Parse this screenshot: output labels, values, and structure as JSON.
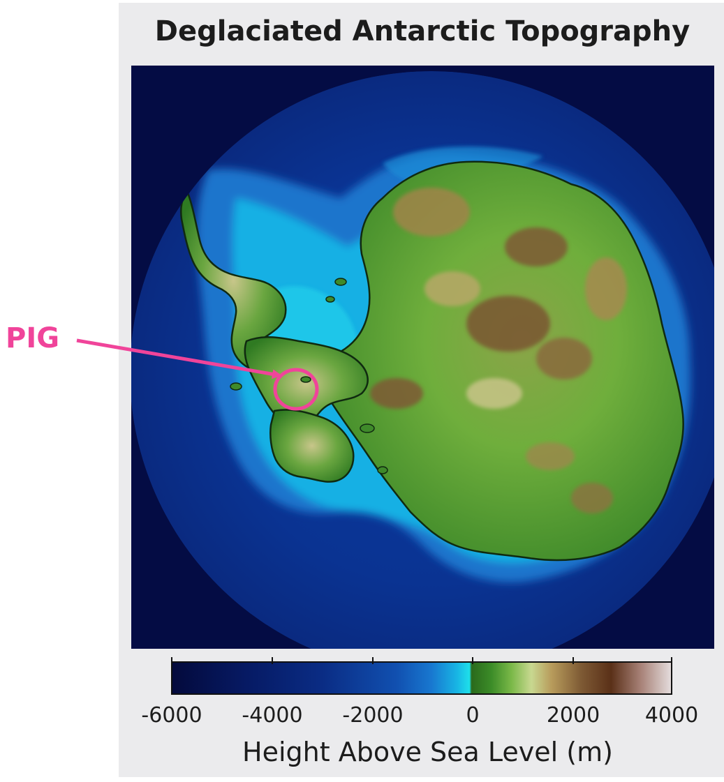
{
  "title": "Deglaciated Antarctic Topography",
  "annotation": {
    "label": "PIG",
    "color": "#f0449a"
  },
  "colorbar": {
    "label": "Height Above Sea Level (m)",
    "min": -6000,
    "max": 4000,
    "ticks": [
      "-6000",
      "-4000",
      "-2000",
      "0",
      "2000",
      "4000"
    ]
  },
  "colors": {
    "deep_ocean": "#040c44",
    "shelf": "#1ee0ea",
    "lowland": "#3c8c28",
    "highland": "#7e5a34",
    "panel_background": "#ebebed"
  }
}
